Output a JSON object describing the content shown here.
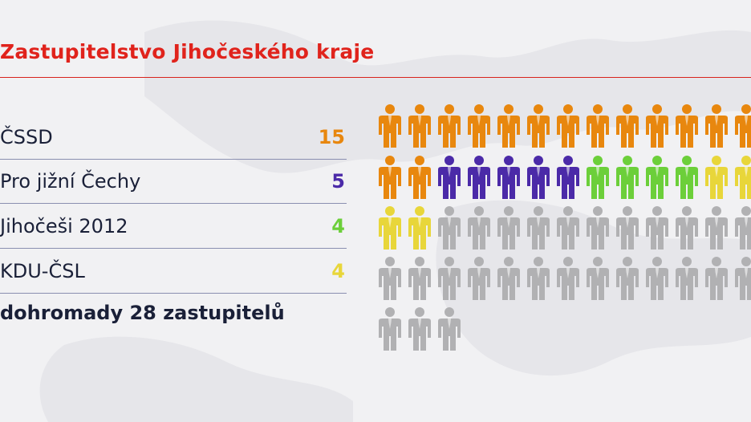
{
  "title": "Zastupitelstvo Jihočeského kraje",
  "total_label": "dohromady 28 zastupitelů",
  "chart_data": {
    "type": "pictogram",
    "title": "Zastupitelstvo Jihočeského kraje",
    "series": [
      {
        "name": "ČSSD",
        "value": 15,
        "color": "#e8870e"
      },
      {
        "name": "Pro jižní Čechy",
        "value": 5,
        "color": "#4b2aa8"
      },
      {
        "name": "Jihočeši 2012",
        "value": 4,
        "color": "#6ccf3a"
      },
      {
        "name": "KDU-ČSL",
        "value": 4,
        "color": "#e8d63a"
      }
    ],
    "total": 28,
    "seats_total": 55,
    "empty_color": "#b1b1b3",
    "legend": "left",
    "icon": "person-icon"
  }
}
